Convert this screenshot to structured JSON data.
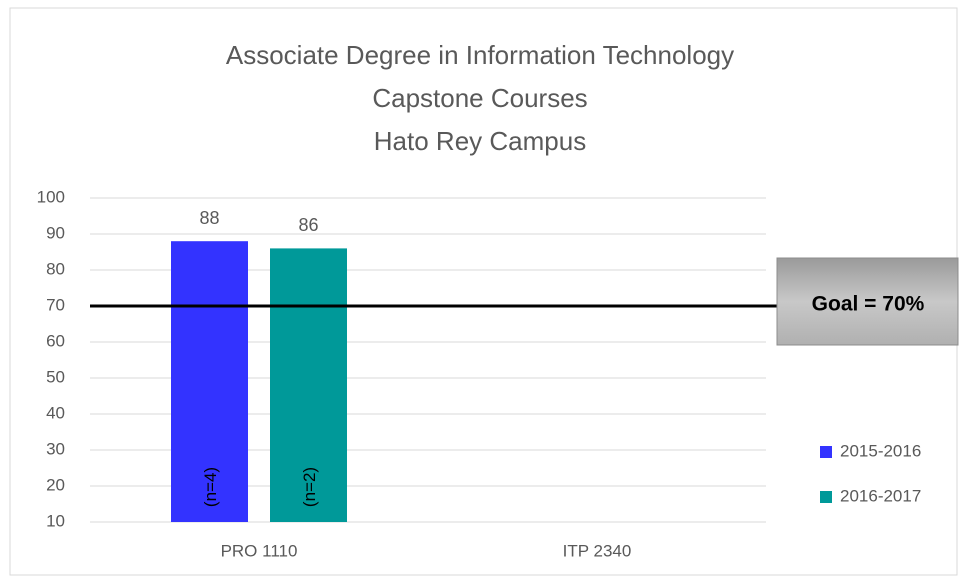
{
  "chart_data": {
    "type": "bar",
    "title": [
      "Associate Degree in Information Technology",
      "Capstone Courses",
      "Hato Rey Campus"
    ],
    "categories": [
      "PRO 1110",
      "ITP 2340"
    ],
    "series": [
      {
        "name": "2015-2016",
        "color": "#3333ff",
        "values": [
          88,
          null
        ],
        "annotations": [
          "(n=4)",
          null
        ]
      },
      {
        "name": "2016-2017",
        "color": "#009999",
        "values": [
          86,
          null
        ],
        "annotations": [
          "(n=2)",
          null
        ]
      }
    ],
    "ylim": [
      10,
      100
    ],
    "yticks": [
      10,
      20,
      30,
      40,
      50,
      60,
      70,
      80,
      90,
      100
    ],
    "grid": true,
    "goal": {
      "value": 70,
      "label": "Goal = 70%"
    },
    "legend": "right"
  }
}
